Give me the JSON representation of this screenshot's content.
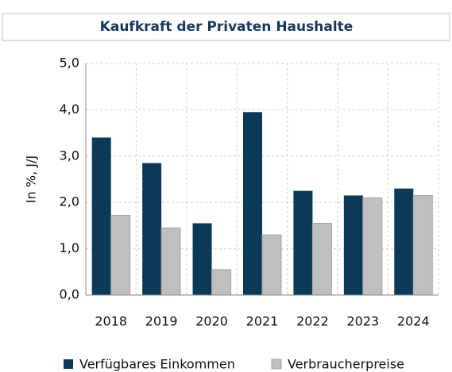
{
  "chart_data": {
    "type": "bar",
    "title": "Kaufkraft der Privaten Haushalte",
    "y_label": "In %, J/J",
    "categories": [
      "2018",
      "2019",
      "2020",
      "2021",
      "2022",
      "2023",
      "2024"
    ],
    "series": [
      {
        "name": "Verfügbares Einkommen",
        "color": "#0b3a58",
        "values": [
          3.4,
          2.85,
          1.55,
          3.95,
          2.25,
          2.15,
          2.3
        ]
      },
      {
        "name": "Verbraucherpreise",
        "color": "#bfbfbf",
        "values": [
          1.72,
          1.45,
          0.55,
          1.3,
          1.55,
          2.1,
          2.15
        ]
      }
    ],
    "ylim": [
      0,
      5
    ],
    "yticks": [
      {
        "value": 0,
        "label": "0,0"
      },
      {
        "value": 1,
        "label": "1,0"
      },
      {
        "value": 2,
        "label": "2,0"
      },
      {
        "value": 3,
        "label": "3,0"
      },
      {
        "value": 4,
        "label": "4,0"
      },
      {
        "value": 5,
        "label": "5,0"
      }
    ],
    "grid": true
  }
}
